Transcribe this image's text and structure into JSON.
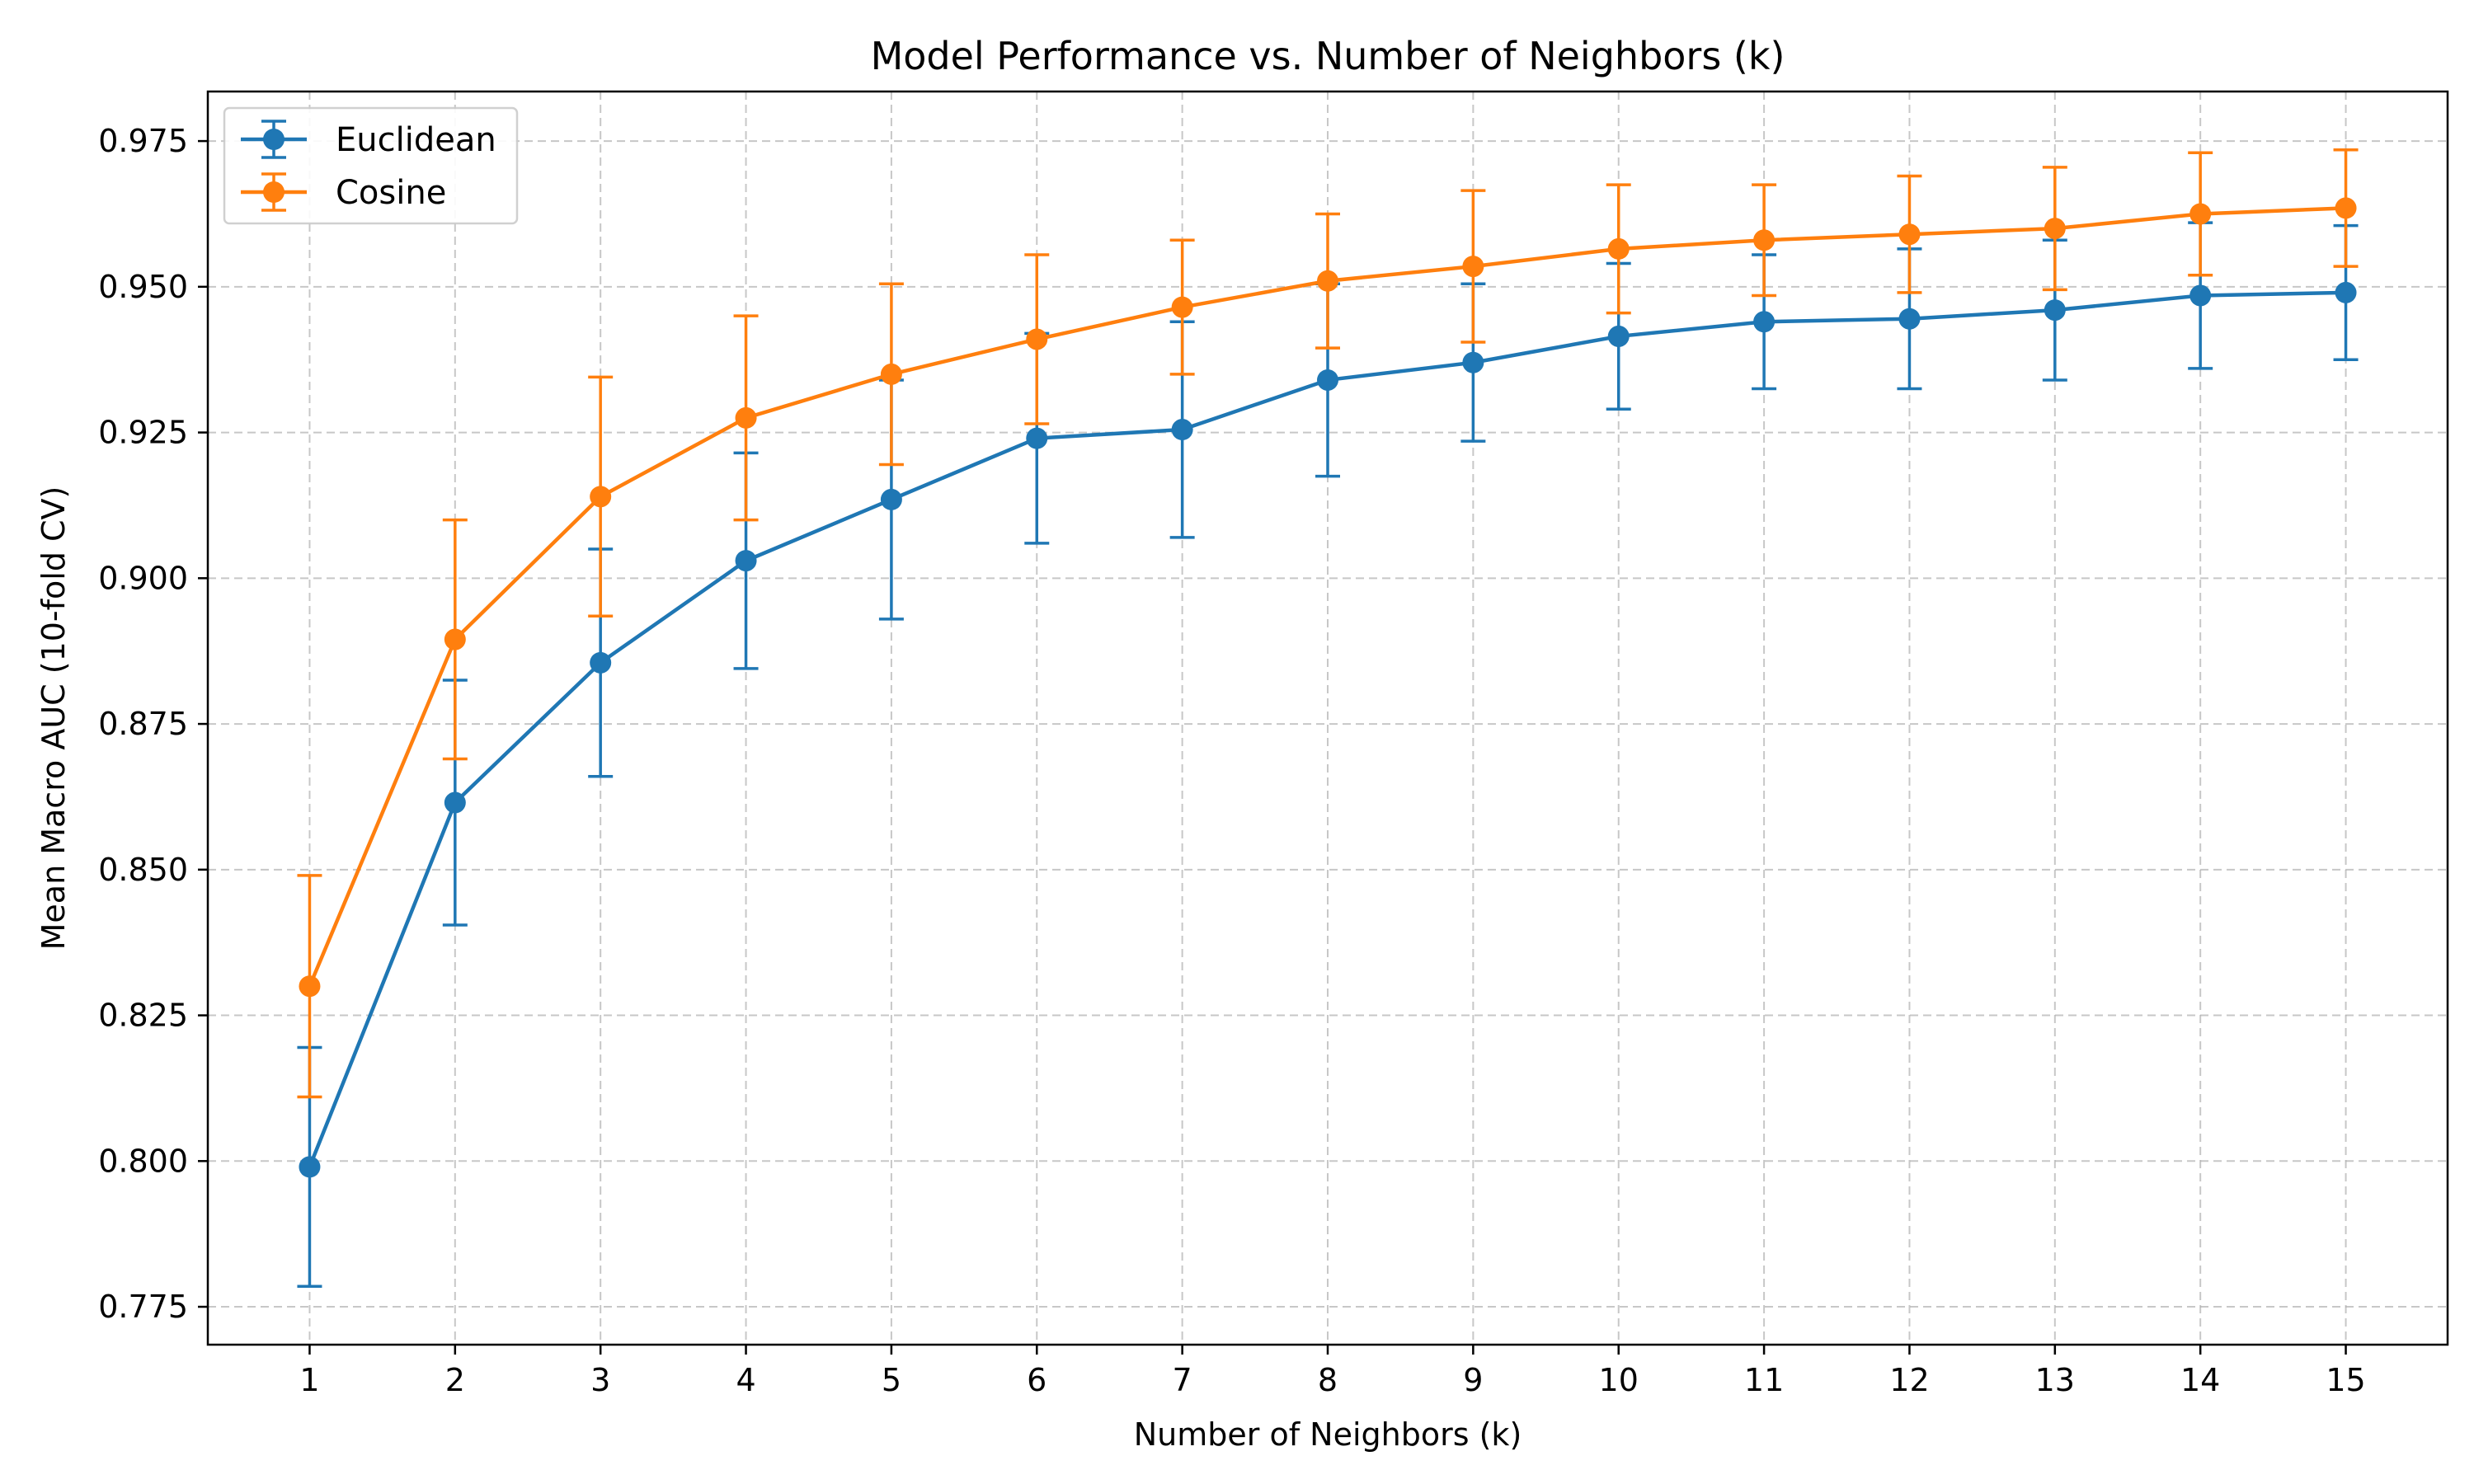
{
  "chart_data": {
    "type": "line",
    "title": "Model Performance vs. Number of Neighbors (k)",
    "xlabel": "Number of Neighbors (k)",
    "ylabel": "Mean Macro AUC (10-fold CV)",
    "x": [
      1,
      2,
      3,
      4,
      5,
      6,
      7,
      8,
      9,
      10,
      11,
      12,
      13,
      14,
      15
    ],
    "xlim": [
      0.3,
      15.7
    ],
    "ylim": [
      0.7685,
      0.9835
    ],
    "yticks": [
      0.775,
      0.8,
      0.825,
      0.85,
      0.875,
      0.9,
      0.925,
      0.95,
      0.975
    ],
    "ytick_labels": [
      "0.775",
      "0.800",
      "0.825",
      "0.850",
      "0.875",
      "0.900",
      "0.925",
      "0.950",
      "0.975"
    ],
    "xtick_labels": [
      "1",
      "2",
      "3",
      "4",
      "5",
      "6",
      "7",
      "8",
      "9",
      "10",
      "11",
      "12",
      "13",
      "14",
      "15"
    ],
    "grid": true,
    "legend_position": "top-left",
    "series": [
      {
        "name": "Euclidean",
        "color": "#1f77b4",
        "values": [
          0.799,
          0.8615,
          0.8855,
          0.903,
          0.9135,
          0.924,
          0.9255,
          0.934,
          0.937,
          0.9415,
          0.944,
          0.9445,
          0.946,
          0.9485,
          0.949
        ],
        "errors": [
          0.0205,
          0.021,
          0.0195,
          0.0185,
          0.0205,
          0.018,
          0.0185,
          0.0165,
          0.0135,
          0.0125,
          0.0115,
          0.012,
          0.012,
          0.0125,
          0.0115
        ]
      },
      {
        "name": "Cosine",
        "color": "#ff7f0e",
        "values": [
          0.83,
          0.8895,
          0.914,
          0.9275,
          0.935,
          0.941,
          0.9465,
          0.951,
          0.9535,
          0.9565,
          0.958,
          0.959,
          0.96,
          0.9625,
          0.9635
        ],
        "errors": [
          0.019,
          0.0205,
          0.0205,
          0.0175,
          0.0155,
          0.0145,
          0.0115,
          0.0115,
          0.013,
          0.011,
          0.0095,
          0.01,
          0.0105,
          0.0105,
          0.01
        ]
      }
    ]
  }
}
